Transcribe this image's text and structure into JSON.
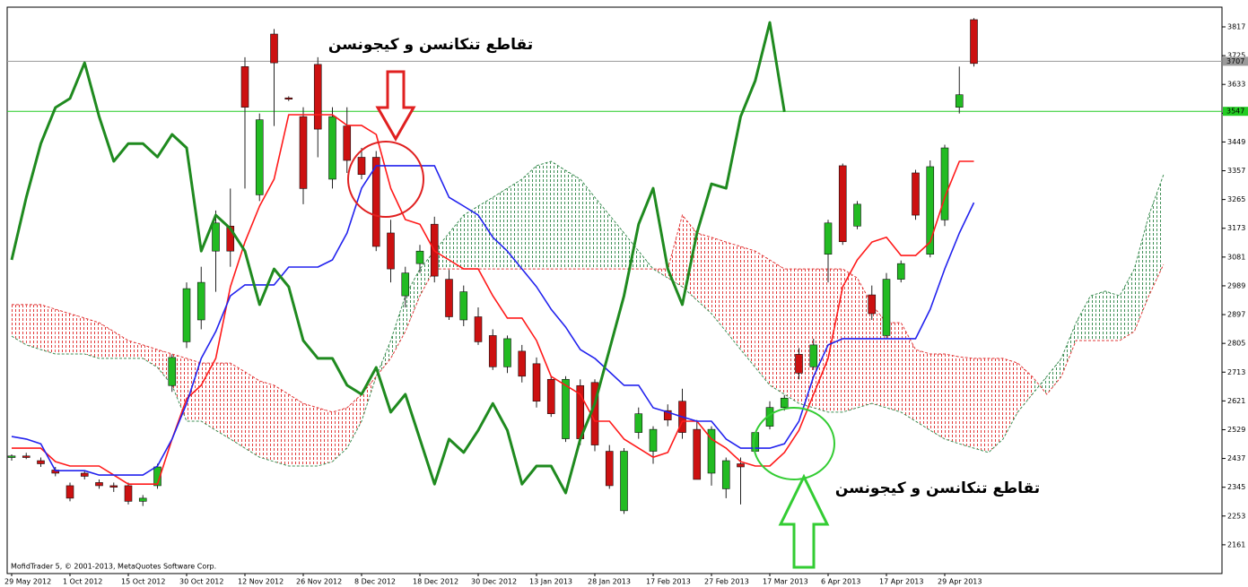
{
  "chart_data": {
    "type": "candlestick",
    "annotations": [
      "تقاطع تنکانسن و کیجونسن",
      "تقاطع تنکانسن و کیجونسن"
    ],
    "copyright": "MofidTrader 5, © 2001-2013, MetaQuotes Software Corp.",
    "categories": [
      "29 May 2012",
      null,
      null,
      null,
      "1 Oct 2012",
      null,
      null,
      null,
      "15 Oct 2012",
      null,
      null,
      null,
      "30 Oct 2012",
      null,
      null,
      null,
      "12 Nov 2012",
      null,
      null,
      null,
      "26 Nov 2012",
      null,
      null,
      null,
      "8 Dec 2012",
      null,
      null,
      null,
      "18 Dec 2012",
      null,
      null,
      null,
      "30 Dec 2012",
      null,
      null,
      null,
      "13 Jan 2013",
      null,
      null,
      null,
      "28 Jan 2013",
      null,
      null,
      null,
      "17 Feb 2013",
      null,
      null,
      null,
      "27 Feb 2013",
      null,
      null,
      null,
      "17 Mar 2013",
      null,
      null,
      null,
      "6 Apr 2013",
      null,
      null,
      null,
      "17 Apr 2013",
      null,
      null,
      null,
      "29 Apr 2013",
      null,
      null,
      null,
      null,
      null,
      null,
      null,
      null,
      null,
      null,
      null,
      null,
      null,
      null,
      null
    ],
    "ylim": [
      2069,
      3880
    ],
    "yticks": [
      3817,
      3725,
      3633,
      3541,
      3449,
      3357,
      3265,
      3173,
      3081,
      2989,
      2897,
      2805,
      2713,
      2621,
      2529,
      2437,
      2345,
      2253,
      2161
    ],
    "up_color": "#22bb22",
    "down_color": "#cc1111",
    "open": [
      2440,
      2445,
      2430,
      2400,
      2350,
      2390,
      2360,
      2350,
      2350,
      2300,
      2350,
      2670,
      2810,
      2880,
      3100,
      3180,
      3690,
      3280,
      3794,
      3590,
      3530,
      3697,
      3330,
      3500,
      3400,
      3400,
      3158,
      2957,
      3060,
      3186,
      3010,
      2880,
      2890,
      2830,
      2730,
      2780,
      2740,
      2690,
      2500,
      2670,
      2680,
      2460,
      2270,
      2520,
      2460,
      2590,
      2620,
      2530,
      2390,
      2340,
      2420,
      2460,
      2540,
      2600,
      2770,
      2730,
      3090,
      3373,
      3180,
      2960,
      2830,
      3010,
      3350,
      3090,
      3200,
      3560,
      3840,
      null,
      null,
      null,
      null,
      null,
      null,
      null,
      null,
      null,
      null,
      null,
      null,
      null
    ],
    "high": [
      2450,
      2455,
      2440,
      2410,
      2360,
      2400,
      2370,
      2360,
      2360,
      2320,
      2420,
      2770,
      3000,
      3050,
      3230,
      3300,
      3720,
      3540,
      3810,
      3595,
      3560,
      3720,
      3560,
      3560,
      3430,
      3420,
      3200,
      3050,
      3120,
      3210,
      3040,
      2990,
      2920,
      2850,
      2830,
      2800,
      2760,
      2700,
      2700,
      2690,
      2690,
      2480,
      2470,
      2600,
      2540,
      2610,
      2660,
      2560,
      2540,
      2440,
      2440,
      2520,
      2620,
      2640,
      2790,
      2820,
      3200,
      3380,
      3260,
      2990,
      3030,
      3070,
      3360,
      3390,
      3440,
      3690,
      3845,
      null,
      null,
      null,
      null,
      null,
      null,
      null,
      null,
      null,
      null,
      null,
      null,
      null
    ],
    "low": [
      2430,
      2435,
      2410,
      2380,
      2300,
      2370,
      2340,
      2330,
      2290,
      2285,
      2340,
      2650,
      2790,
      2850,
      2970,
      3050,
      3300,
      3260,
      3500,
      3580,
      3250,
      3400,
      3300,
      3350,
      3330,
      3100,
      3000,
      2920,
      3030,
      3000,
      2880,
      2860,
      2800,
      2720,
      2710,
      2680,
      2600,
      2570,
      2490,
      2480,
      2460,
      2340,
      2260,
      2500,
      2420,
      2540,
      2500,
      2370,
      2350,
      2310,
      2290,
      2450,
      2530,
      2590,
      2690,
      2720,
      3000,
      3120,
      3170,
      2880,
      2820,
      3000,
      3200,
      3080,
      3180,
      3540,
      3690,
      null,
      null,
      null,
      null,
      null,
      null,
      null,
      null,
      null,
      null,
      null,
      null,
      null
    ],
    "close": [
      2445,
      2440,
      2420,
      2390,
      2310,
      2380,
      2350,
      2345,
      2300,
      2310,
      2410,
      2760,
      2980,
      3000,
      3190,
      3100,
      3560,
      3520,
      3702,
      3588,
      3300,
      3490,
      3530,
      3390,
      3345,
      3115,
      3043,
      3030,
      3100,
      3020,
      2890,
      2970,
      2810,
      2730,
      2820,
      2700,
      2620,
      2580,
      2690,
      2500,
      2480,
      2350,
      2460,
      2580,
      2530,
      2560,
      2520,
      2370,
      2530,
      2430,
      2410,
      2520,
      2600,
      2630,
      2710,
      2800,
      3190,
      3130,
      3250,
      2900,
      3010,
      3060,
      3215,
      3370,
      3430,
      3600,
      3700,
      null,
      null,
      null,
      null,
      null,
      null,
      null,
      null,
      null,
      null,
      null,
      null,
      null
    ],
    "lines": [
      {
        "color": "#ff1a1a",
        "width": 1.6,
        "values": [
          2470,
          2470,
          2470,
          2427,
          2413,
          2413,
          2413,
          2384,
          2355,
          2355,
          2355,
          2499,
          2628,
          2671,
          2757,
          2986,
          3129,
          3244,
          3330,
          3536,
          3536,
          3536,
          3536,
          3502,
          3502,
          3473,
          3301,
          3201,
          3186,
          3100,
          3072,
          3043,
          3043,
          2957,
          2886,
          2886,
          2814,
          2699,
          2671,
          2642,
          2556,
          2556,
          2499,
          2470,
          2441,
          2456,
          2556,
          2556,
          2499,
          2470,
          2427,
          2413,
          2413,
          2456,
          2527,
          2642,
          2757,
          2986,
          3072,
          3129,
          3144,
          3086,
          3086,
          3129,
          3272,
          3387,
          3387,
          null,
          null,
          null,
          null,
          null,
          null,
          null,
          null,
          null,
          null,
          null,
          null,
          null
        ]
      },
      {
        "color": "#2222ee",
        "width": 1.6,
        "values": [
          2507,
          2499,
          2484,
          2398,
          2398,
          2398,
          2384,
          2384,
          2384,
          2384,
          2413,
          2499,
          2613,
          2757,
          2843,
          2957,
          2992,
          2992,
          2992,
          3049,
          3049,
          3049,
          3072,
          3158,
          3301,
          3373,
          3373,
          3373,
          3373,
          3373,
          3272,
          3244,
          3215,
          3144,
          3100,
          3043,
          2986,
          2914,
          2857,
          2785,
          2757,
          2714,
          2671,
          2671,
          2599,
          2585,
          2570,
          2556,
          2556,
          2499,
          2470,
          2470,
          2470,
          2484,
          2556,
          2699,
          2800,
          2820,
          2820,
          2820,
          2820,
          2820,
          2820,
          2914,
          3043,
          3158,
          3255,
          null,
          null,
          null,
          null,
          null,
          null,
          null,
          null,
          null,
          null,
          null,
          null,
          null
        ]
      },
      {
        "color": "#1f8a1f",
        "width": 3,
        "values": [
          3072,
          3272,
          3444,
          3559,
          3588,
          3702,
          3530,
          3387,
          3444,
          3444,
          3401,
          3473,
          3430,
          3100,
          3215,
          3172,
          3100,
          2929,
          3043,
          2986,
          2814,
          2757,
          2757,
          2671,
          2642,
          2728,
          2585,
          2642,
          2499,
          2355,
          2499,
          2456,
          2527,
          2613,
          2527,
          2355,
          2413,
          2413,
          2327,
          2499,
          2613,
          2785,
          2957,
          3186,
          3301,
          3043,
          2929,
          3158,
          3315,
          3301,
          3530,
          3645,
          3831,
          3545,
          null,
          null,
          null,
          null,
          null,
          null,
          null,
          null,
          null,
          null,
          null,
          null,
          null,
          null,
          null,
          null,
          null,
          null,
          null,
          null,
          null,
          null
        ]
      }
    ],
    "cloud": {
      "up_color": "#3f8f55",
      "down_color": "#e23a3a",
      "span_a": [
        2828,
        2800,
        2785,
        2771,
        2771,
        2771,
        2757,
        2757,
        2757,
        2757,
        2728,
        2671,
        2556,
        2556,
        2527,
        2499,
        2470,
        2441,
        2427,
        2413,
        2413,
        2413,
        2427,
        2470,
        2556,
        2699,
        2814,
        2957,
        3043,
        3100,
        3158,
        3215,
        3244,
        3272,
        3301,
        3330,
        3373,
        3387,
        3358,
        3330,
        3272,
        3215,
        3158,
        3100,
        3043,
        3014,
        2986,
        2943,
        2900,
        2843,
        2785,
        2728,
        2671,
        2642,
        2613,
        2599,
        2585,
        2585,
        2599,
        2613,
        2599,
        2585,
        2556,
        2527,
        2499,
        2484,
        2470,
        2456,
        2499,
        2585,
        2642,
        2699,
        2757,
        2871,
        2957,
        2972,
        2957,
        3043,
        3215,
        3344
      ],
      "span_b": [
        2929,
        2929,
        2929,
        2914,
        2900,
        2886,
        2871,
        2843,
        2814,
        2800,
        2785,
        2771,
        2757,
        2742,
        2742,
        2742,
        2714,
        2685,
        2671,
        2642,
        2613,
        2599,
        2585,
        2599,
        2642,
        2699,
        2757,
        2843,
        2957,
        3043,
        3043,
        3043,
        3043,
        3043,
        3043,
        3043,
        3043,
        3043,
        3043,
        3043,
        3043,
        3043,
        3043,
        3043,
        3043,
        3043,
        3215,
        3158,
        3144,
        3129,
        3115,
        3100,
        3072,
        3043,
        3043,
        3043,
        3043,
        3043,
        3014,
        2929,
        2871,
        2871,
        2785,
        2771,
        2771,
        2762,
        2757,
        2757,
        2757,
        2742,
        2699,
        2642,
        2699,
        2814,
        2814,
        2814,
        2814,
        2843,
        2957,
        3057
      ]
    },
    "price_lines": [
      {
        "value": 3707,
        "color": "#9a9a9a"
      },
      {
        "value": 3547,
        "color": "#22cc22"
      }
    ]
  }
}
